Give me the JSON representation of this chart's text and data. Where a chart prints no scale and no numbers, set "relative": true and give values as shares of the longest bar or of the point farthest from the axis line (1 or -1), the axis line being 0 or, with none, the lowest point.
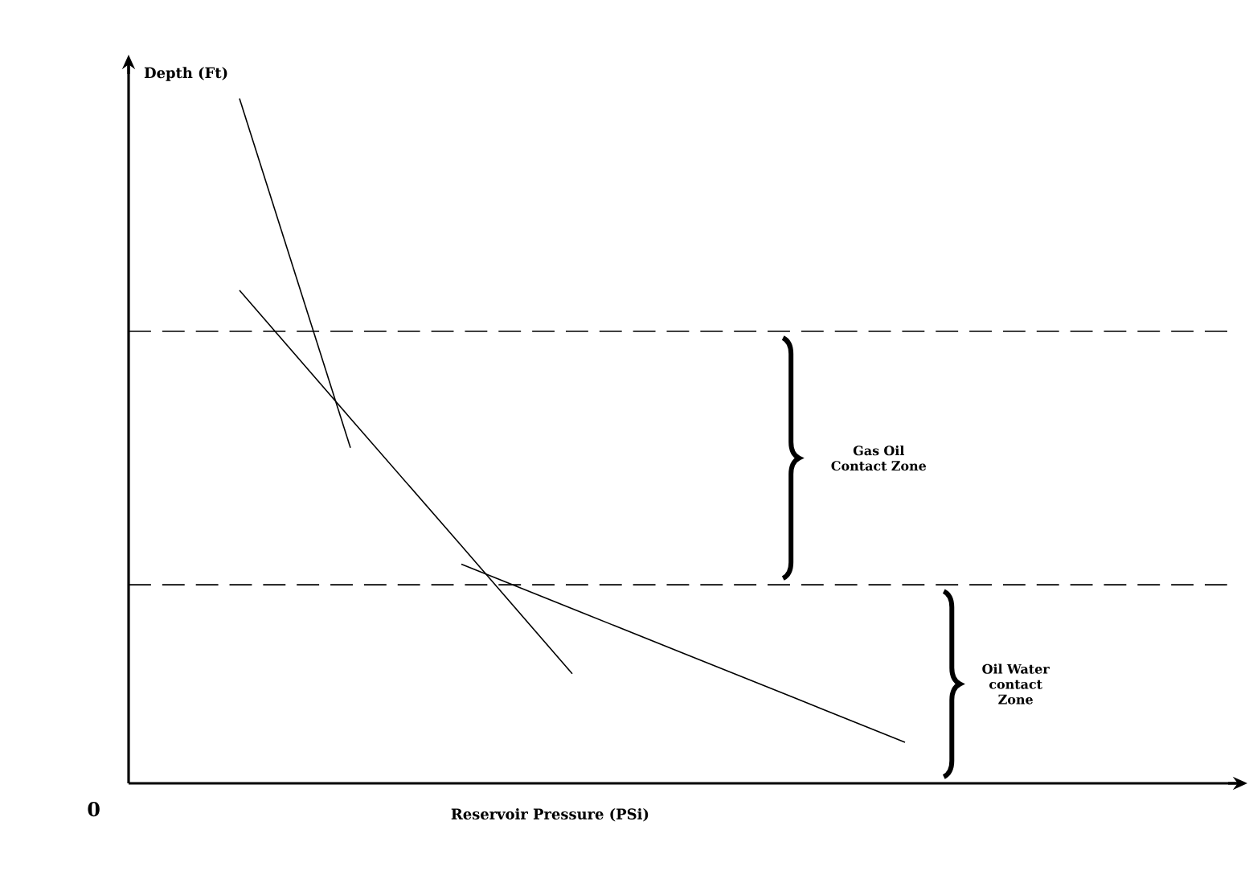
{
  "chart_data": {
    "type": "line",
    "relative": true,
    "xlabel": "Reservoir Pressure (PSi)",
    "ylabel": "Depth (Ft)",
    "categories": [
      null,
      null,
      null,
      null,
      null,
      null,
      null,
      null,
      null,
      null,
      null
    ],
    "series": [
      {
        "color": "#000000",
        "values": [
          null,
          1.0,
          0.49,
          null,
          null,
          null,
          null,
          null,
          null,
          null,
          null
        ]
      },
      {
        "color": "#000000",
        "values": [
          null,
          0.72,
          0.533,
          0.347,
          0.16,
          null,
          null,
          null,
          null,
          null,
          null
        ]
      },
      {
        "color": "#000000",
        "values": [
          null,
          null,
          null,
          0.32,
          0.255,
          0.19,
          0.125,
          0.06,
          null,
          null,
          null
        ]
      }
    ],
    "ref_lines": [
      {
        "axis": "y",
        "value": 0.66,
        "line_style": "dashed",
        "color": "#000000"
      },
      {
        "axis": "y",
        "value": 0.29,
        "line_style": "dashed",
        "color": "#000000"
      }
    ],
    "annotations": [
      "0",
      "Gas Oil Contact Zone",
      "Oil Water contact Zone"
    ]
  }
}
